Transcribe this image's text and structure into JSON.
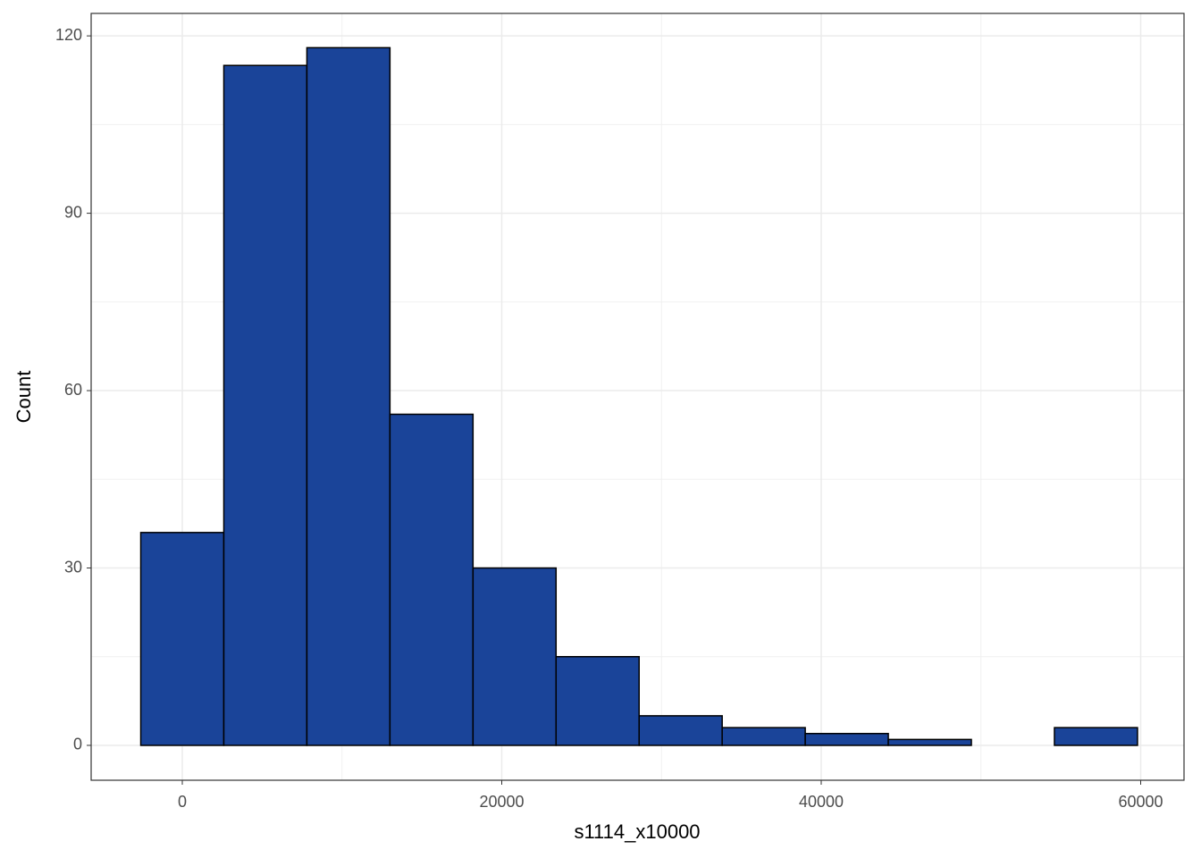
{
  "chart_data": {
    "type": "histogram",
    "x_label": "s1114_x10000",
    "y_label": "Count",
    "bins": [
      -2600,
      2600,
      7800,
      13000,
      18200,
      23400,
      28600,
      33800,
      39000,
      44200,
      49400,
      54600,
      59800
    ],
    "values": [
      36,
      115,
      118,
      56,
      30,
      15,
      5,
      3,
      2,
      1,
      0,
      3
    ],
    "color": "#1a4499",
    "xlim": [
      -5706,
      62713
    ],
    "ylim": [
      -5.9,
      123.8
    ],
    "xticks": [
      0,
      20000,
      40000,
      60000
    ],
    "yticks": [
      0,
      30,
      60,
      90,
      120
    ],
    "grid": true
  }
}
